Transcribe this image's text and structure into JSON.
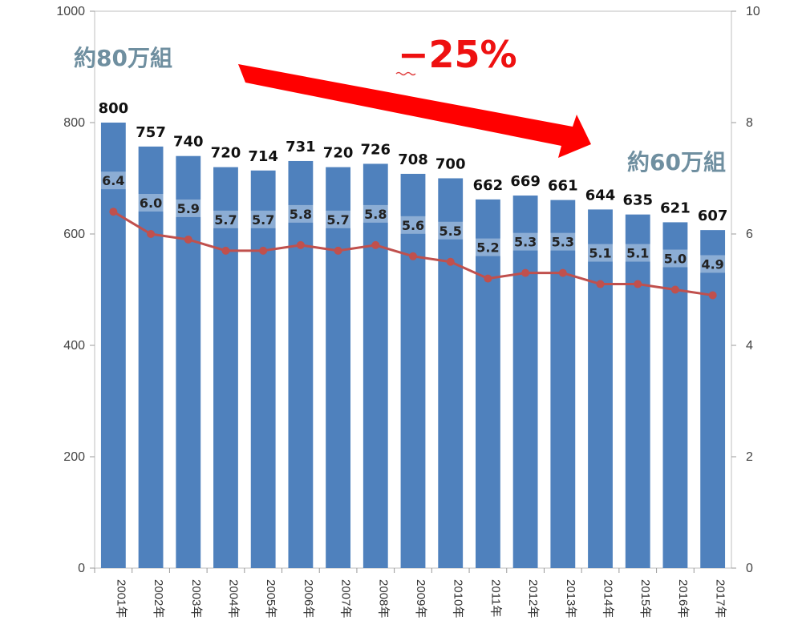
{
  "chart_data": {
    "type": "bar",
    "categories": [
      "2001年",
      "2002年",
      "2003年",
      "2004年",
      "2005年",
      "2006年",
      "2007年",
      "2008年",
      "2009年",
      "2010年",
      "2011年",
      "2012年",
      "2013年",
      "2014年",
      "2015年",
      "2016年",
      "2017年"
    ],
    "series": [
      {
        "type": "bar",
        "axis": "left",
        "values": [
          800,
          757,
          740,
          720,
          714,
          731,
          720,
          726,
          708,
          700,
          662,
          669,
          661,
          644,
          635,
          621,
          607
        ],
        "labels": [
          "800",
          "757",
          "740",
          "720",
          "714",
          "731",
          "720",
          "726",
          "708",
          "700",
          "662",
          "669",
          "661",
          "644",
          "635",
          "621",
          "607"
        ]
      },
      {
        "type": "line",
        "axis": "right",
        "values": [
          6.4,
          6.0,
          5.9,
          5.7,
          5.7,
          5.8,
          5.7,
          5.8,
          5.6,
          5.5,
          5.2,
          5.3,
          5.3,
          5.1,
          5.1,
          5.0,
          4.9
        ],
        "labels": [
          "6.4",
          "6.0",
          "5.9",
          "5.7",
          "5.7",
          "5.8",
          "5.7",
          "5.8",
          "5.6",
          "5.5",
          "5.2",
          "5.3",
          "5.3",
          "5.1",
          "5.1",
          "5.0",
          "4.9"
        ]
      }
    ],
    "left_axis": {
      "range": [
        0,
        1000
      ],
      "ticks": [
        "0",
        "200",
        "400",
        "600",
        "800",
        "1000"
      ]
    },
    "right_axis": {
      "range": [
        0,
        10
      ],
      "ticks": [
        "0",
        "2",
        "4",
        "6",
        "8",
        "10"
      ]
    },
    "annotations": {
      "start_label": "約80万組",
      "end_label": "約60万組",
      "change_label": "−25%"
    },
    "colors": {
      "bar": "#4f81bd",
      "line": "#c0504d",
      "arrow": "#ff0000",
      "annotation": "#6f8fa0"
    },
    "grid": false,
    "legend": "none"
  }
}
